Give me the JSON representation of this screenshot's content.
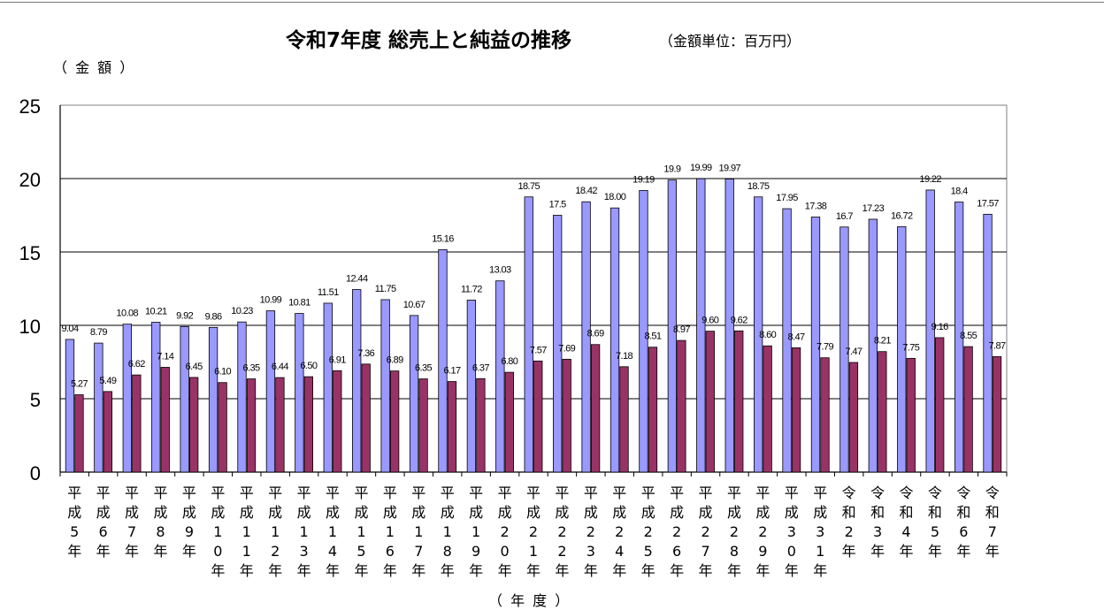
{
  "title": "令和7年度 総売上と純益の推移",
  "subtitle": "（金額単位：百万円）",
  "y_unit_label": "（ 金 額 ）",
  "x_unit_label": "（ 年  度 ）",
  "colors": {
    "sales": "#9999ff",
    "profit": "#993366"
  },
  "chart_data": {
    "type": "bar",
    "title": "令和7年度 総売上と純益の推移",
    "subtitle": "（金額単位：百万円）",
    "xlabel": "（年度）",
    "ylabel": "（金額）",
    "ylim": [
      0,
      25
    ],
    "yticks": [
      "0",
      "5",
      "10",
      "15",
      "20",
      "25"
    ],
    "grid": true,
    "legend": "none",
    "categories": [
      "平成5年",
      "平成6年",
      "平成7年",
      "平成8年",
      "平成9年",
      "平成10年",
      "平成11年",
      "平成12年",
      "平成13年",
      "平成14年",
      "平成15年",
      "平成16年",
      "平成17年",
      "平成18年",
      "平成19年",
      "平成20年",
      "平成21年",
      "平成22年",
      "平成23年",
      "平成24年",
      "平成25年",
      "平成26年",
      "平成27年",
      "平成28年",
      "平成29年",
      "平成30年",
      "平成31年",
      "令和2年",
      "令和3年",
      "令和4年",
      "令和5年",
      "令和6年",
      "令和7年"
    ],
    "series": [
      {
        "values": [
          9.04,
          8.79,
          10.08,
          10.21,
          9.92,
          9.86,
          10.23,
          10.99,
          10.81,
          11.51,
          12.44,
          11.75,
          10.67,
          15.16,
          11.72,
          13.03,
          18.75,
          17.5,
          18.42,
          18.0,
          19.19,
          19.9,
          19.99,
          19.97,
          18.75,
          17.95,
          17.38,
          16.7,
          17.23,
          16.72,
          19.22,
          18.4,
          17.57
        ],
        "labels": [
          "9.04",
          "8.79",
          "10.08",
          "10.21",
          "9.92",
          "9.86",
          "10.23",
          "10.99",
          "10.81",
          "11.51",
          "12.44",
          "11.75",
          "10.67",
          "15.16",
          "11.72",
          "13.03",
          "18.75",
          "17.5",
          "18.42",
          "18.00",
          "19.19",
          "19.9",
          "19.99",
          "19.97",
          "18.75",
          "17.95",
          "17.38",
          "16.7",
          "17.23",
          "16.72",
          "19.22",
          "18.4",
          "17.57"
        ]
      },
      {
        "values": [
          5.27,
          5.49,
          6.62,
          7.14,
          6.45,
          6.1,
          6.35,
          6.44,
          6.5,
          6.91,
          7.36,
          6.89,
          6.35,
          6.17,
          6.37,
          6.8,
          7.57,
          7.69,
          8.69,
          7.18,
          8.51,
          8.97,
          9.6,
          9.62,
          8.6,
          8.47,
          7.79,
          7.47,
          8.21,
          7.75,
          9.16,
          8.55,
          7.87
        ],
        "labels": [
          "5.27",
          "5.49",
          "6.62",
          "7.14",
          "6.45",
          "6.10",
          "6.35",
          "6.44",
          "6.50",
          "6.91",
          "7.36",
          "6.89",
          "6.35",
          "6.17",
          "6.37",
          "6.80",
          "7.57",
          "7.69",
          "8.69",
          "7.18",
          "8.51",
          "8.97",
          "9.60",
          "9.62",
          "8.60",
          "8.47",
          "7.79",
          "7.47",
          "8.21",
          "7.75",
          "9.16",
          "8.55",
          "7.87"
        ]
      }
    ]
  }
}
